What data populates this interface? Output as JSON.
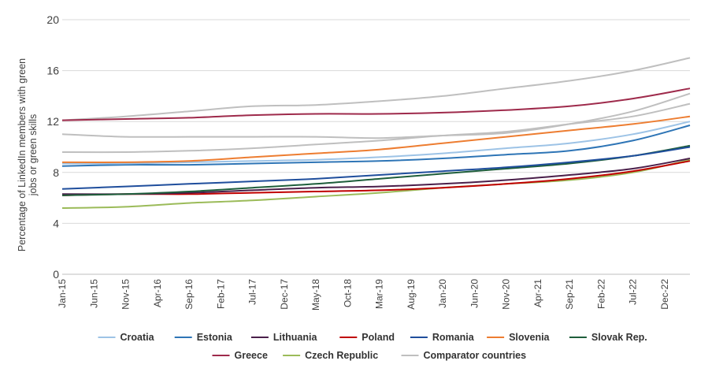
{
  "chart_data": {
    "type": "line",
    "ylabel": "Percentage of LinkedIn members with green jobs or green skills",
    "ylim": [
      0,
      20
    ],
    "yticks": [
      "0",
      "4",
      "8",
      "12",
      "16",
      "20"
    ],
    "grid": true,
    "legend_position": "bottom",
    "x_tick_labels": [
      "Jan-15",
      "Jun-15",
      "Nov-15",
      "Apr-16",
      "Sep-16",
      "Feb-17",
      "Jul-17",
      "Dec-17",
      "May-18",
      "Oct-18",
      "Mar-19",
      "Aug-19",
      "Jan-20",
      "Jun-20",
      "Nov-20",
      "Apr-21",
      "Sep-21",
      "Feb-22",
      "Jul-22",
      "Dec-22"
    ],
    "x_anchor_months": [
      0,
      10,
      20,
      30,
      40,
      50,
      60,
      70,
      80,
      90,
      99
    ],
    "x_last_month": 99,
    "series": [
      {
        "name": "Croatia",
        "color": "#9dc3e6",
        "values": [
          8.7,
          8.7,
          8.8,
          8.9,
          9.0,
          9.2,
          9.5,
          9.9,
          10.3,
          11.0,
          12.0
        ]
      },
      {
        "name": "Estonia",
        "color": "#2e75b6",
        "values": [
          8.5,
          8.6,
          8.6,
          8.7,
          8.8,
          8.9,
          9.1,
          9.4,
          9.7,
          10.5,
          11.7
        ]
      },
      {
        "name": "Lithuania",
        "color": "#4a1f4a",
        "values": [
          6.3,
          6.3,
          6.4,
          6.6,
          6.8,
          6.9,
          7.1,
          7.4,
          7.8,
          8.3,
          9.1
        ]
      },
      {
        "name": "Poland",
        "color": "#c00000",
        "values": [
          6.2,
          6.3,
          6.3,
          6.4,
          6.5,
          6.6,
          6.8,
          7.1,
          7.5,
          8.1,
          8.9
        ]
      },
      {
        "name": "Romania",
        "color": "#1f4e9c",
        "values": [
          6.7,
          6.9,
          7.1,
          7.3,
          7.5,
          7.8,
          8.1,
          8.4,
          8.8,
          9.3,
          10.0
        ]
      },
      {
        "name": "Slovenia",
        "color": "#ed7d31",
        "values": [
          8.8,
          8.8,
          8.9,
          9.2,
          9.5,
          9.8,
          10.3,
          10.8,
          11.3,
          11.8,
          12.4
        ]
      },
      {
        "name": "Slovak Rep.",
        "color": "#1e5e3b",
        "values": [
          6.2,
          6.3,
          6.5,
          6.8,
          7.1,
          7.5,
          7.9,
          8.3,
          8.7,
          9.3,
          10.1
        ]
      },
      {
        "name": "Greece",
        "color": "#9e2a4b",
        "values": [
          12.1,
          12.2,
          12.3,
          12.5,
          12.6,
          12.6,
          12.7,
          12.9,
          13.2,
          13.8,
          14.6
        ]
      },
      {
        "name": "Czech Republic",
        "color": "#9bbb59",
        "values": [
          5.2,
          5.3,
          5.6,
          5.8,
          6.1,
          6.4,
          6.8,
          7.1,
          7.4,
          8.0,
          9.0
        ]
      },
      {
        "name": "Comparator countries",
        "color": "#bfbfbf",
        "values": [
          11.0,
          10.8,
          10.8,
          10.8,
          10.8,
          10.7,
          10.9,
          11.1,
          11.8,
          12.8,
          14.2
        ]
      },
      {
        "name": "",
        "color": "#bfbfbf",
        "values": [
          12.1,
          12.4,
          12.8,
          13.2,
          13.3,
          13.6,
          14.0,
          14.6,
          15.2,
          16.0,
          17.0
        ]
      },
      {
        "name": "",
        "color": "#bfbfbf",
        "values": [
          9.6,
          9.6,
          9.7,
          9.9,
          10.2,
          10.5,
          10.9,
          11.2,
          11.8,
          12.4,
          13.4
        ]
      }
    ],
    "legend": [
      [
        "Croatia",
        "Estonia",
        "Lithuania",
        "Poland",
        "Romania",
        "Slovenia",
        "Slovak Rep."
      ],
      [
        "Greece",
        "Czech Republic",
        "Comparator countries"
      ]
    ]
  }
}
